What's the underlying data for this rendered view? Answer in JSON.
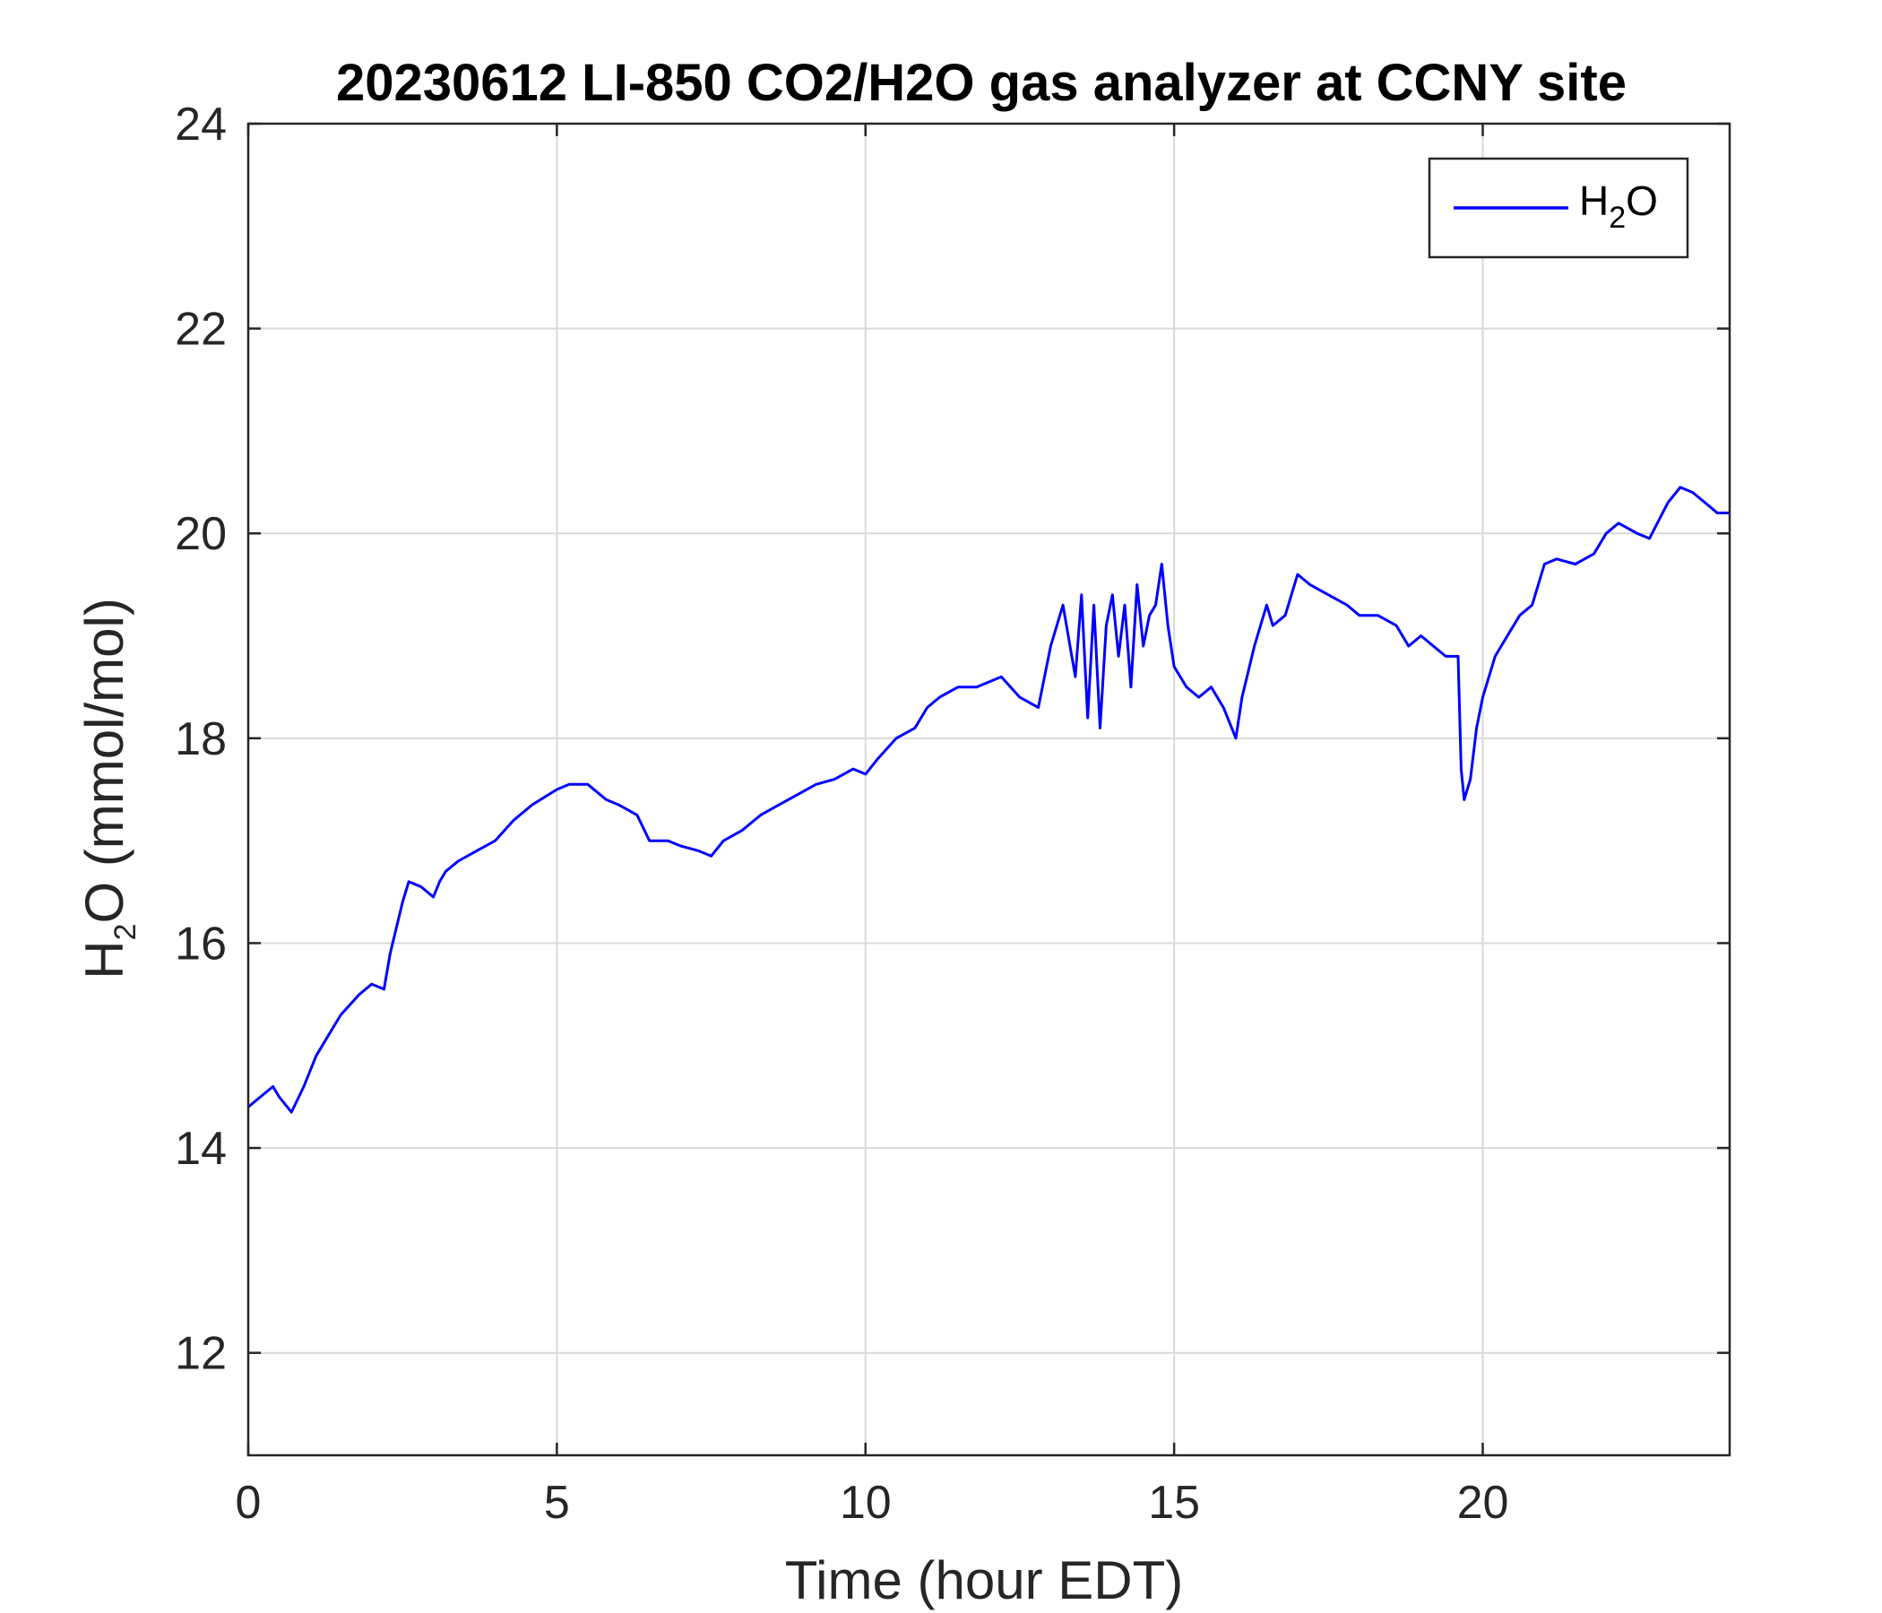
{
  "chart_data": {
    "type": "line",
    "title": "20230612 LI-850 CO2/H2O gas analyzer at CCNY site",
    "xlabel": "Time (hour EDT)",
    "ylabel": {
      "prefix": "H",
      "subscript": "2",
      "suffix": "O (mmol/mol)"
    },
    "xlim": [
      0,
      24
    ],
    "ylim": [
      11,
      24
    ],
    "xticks": [
      0,
      5,
      10,
      15,
      20
    ],
    "xtick_labels": [
      "0",
      "5",
      "10",
      "15",
      "20"
    ],
    "yticks": [
      12,
      14,
      16,
      18,
      20,
      22,
      24
    ],
    "ytick_labels": [
      "12",
      "14",
      "16",
      "18",
      "20",
      "22",
      "24"
    ],
    "grid": true,
    "legend_position": "top-right",
    "series": [
      {
        "name": "H2O",
        "legend_label": {
          "prefix": "H",
          "subscript": "2",
          "suffix": "O"
        },
        "color": "#0000ff",
        "x": [
          0,
          0.2,
          0.4,
          0.5,
          0.7,
          0.9,
          1.1,
          1.3,
          1.5,
          1.8,
          2.0,
          2.2,
          2.3,
          2.5,
          2.6,
          2.8,
          3.0,
          3.1,
          3.2,
          3.4,
          3.7,
          4.0,
          4.3,
          4.6,
          5.0,
          5.2,
          5.5,
          5.8,
          6.0,
          6.3,
          6.5,
          6.8,
          7.0,
          7.3,
          7.5,
          7.7,
          8.0,
          8.3,
          8.6,
          8.9,
          9.2,
          9.5,
          9.8,
          10.0,
          10.2,
          10.5,
          10.8,
          11.0,
          11.2,
          11.5,
          11.8,
          12.0,
          12.2,
          12.5,
          12.8,
          13.0,
          13.2,
          13.4,
          13.5,
          13.6,
          13.7,
          13.8,
          13.9,
          14.0,
          14.1,
          14.2,
          14.3,
          14.4,
          14.5,
          14.6,
          14.7,
          14.8,
          14.9,
          15.0,
          15.2,
          15.4,
          15.6,
          15.8,
          16.0,
          16.1,
          16.3,
          16.5,
          16.6,
          16.8,
          17.0,
          17.2,
          17.5,
          17.8,
          18.0,
          18.3,
          18.6,
          18.8,
          19.0,
          19.2,
          19.4,
          19.6,
          19.65,
          19.7,
          19.8,
          19.9,
          20.0,
          20.2,
          20.4,
          20.6,
          20.8,
          21.0,
          21.2,
          21.5,
          21.8,
          22.0,
          22.2,
          22.5,
          22.7,
          23.0,
          23.2,
          23.4,
          23.6,
          23.8,
          24.0
        ],
        "y": [
          14.4,
          14.5,
          14.6,
          14.5,
          14.35,
          14.6,
          14.9,
          15.1,
          15.3,
          15.5,
          15.6,
          15.55,
          15.9,
          16.4,
          16.6,
          16.55,
          16.45,
          16.6,
          16.7,
          16.8,
          16.9,
          17.0,
          17.2,
          17.35,
          17.5,
          17.55,
          17.55,
          17.4,
          17.35,
          17.25,
          17.0,
          17.0,
          16.95,
          16.9,
          16.85,
          17.0,
          17.1,
          17.25,
          17.35,
          17.45,
          17.55,
          17.6,
          17.7,
          17.65,
          17.8,
          18.0,
          18.1,
          18.3,
          18.4,
          18.5,
          18.5,
          18.55,
          18.6,
          18.4,
          18.3,
          18.9,
          19.3,
          18.6,
          19.4,
          18.2,
          19.3,
          18.1,
          19.1,
          19.4,
          18.8,
          19.3,
          18.5,
          19.5,
          18.9,
          19.2,
          19.3,
          19.7,
          19.1,
          18.7,
          18.5,
          18.4,
          18.5,
          18.3,
          18.0,
          18.4,
          18.9,
          19.3,
          19.1,
          19.2,
          19.6,
          19.5,
          19.4,
          19.3,
          19.2,
          19.2,
          19.1,
          18.9,
          19.0,
          18.9,
          18.8,
          18.8,
          17.7,
          17.4,
          17.6,
          18.1,
          18.4,
          18.8,
          19.0,
          19.2,
          19.3,
          19.7,
          19.75,
          19.7,
          19.8,
          20.0,
          20.1,
          20.0,
          19.95,
          20.3,
          20.45,
          20.4,
          20.3,
          20.2,
          20.2
        ]
      }
    ]
  }
}
